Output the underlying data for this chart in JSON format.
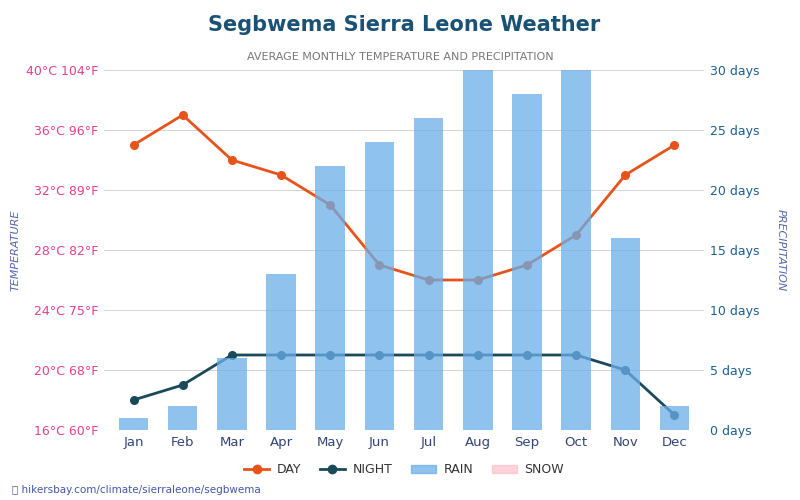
{
  "title": "Segbwema Sierra Leone Weather",
  "subtitle": "AVERAGE MONTHLY TEMPERATURE AND PRECIPITATION",
  "months": [
    "Jan",
    "Feb",
    "Mar",
    "Apr",
    "May",
    "Jun",
    "Jul",
    "Aug",
    "Sep",
    "Oct",
    "Nov",
    "Dec"
  ],
  "day_temp": [
    35,
    37,
    34,
    33,
    31,
    27,
    26,
    26,
    27,
    29,
    33,
    35
  ],
  "night_temp": [
    18,
    19,
    21,
    21,
    21,
    21,
    21,
    21,
    21,
    21,
    20,
    17
  ],
  "rain_days": [
    1,
    2,
    6,
    13,
    22,
    24,
    26,
    30,
    28,
    30,
    16,
    2
  ],
  "temp_min": 16,
  "temp_max": 40,
  "temp_ticks": [
    16,
    20,
    24,
    28,
    32,
    36,
    40
  ],
  "temp_labels": [
    "16°C 60°F",
    "20°C 68°F",
    "24°C 75°F",
    "28°C 82°F",
    "32°C 89°F",
    "36°C 96°F",
    "40°C 104°F"
  ],
  "precip_min": 0,
  "precip_max": 30,
  "precip_ticks": [
    0,
    5,
    10,
    15,
    20,
    25,
    30
  ],
  "precip_labels": [
    "0 days",
    "5 days",
    "10 days",
    "15 days",
    "20 days",
    "25 days",
    "30 days"
  ],
  "bar_color": "#6aaee8",
  "day_line_color": "#e8531a",
  "night_line_color": "#1a4a5a",
  "title_color": "#1a5276",
  "left_label_color": "#e83e8c",
  "right_label_color": "#1a6090",
  "axis_label_color": "#5566aa",
  "footer": "hikersbay.com/climate/sierraleone/segbwema",
  "background_color": "#ffffff"
}
